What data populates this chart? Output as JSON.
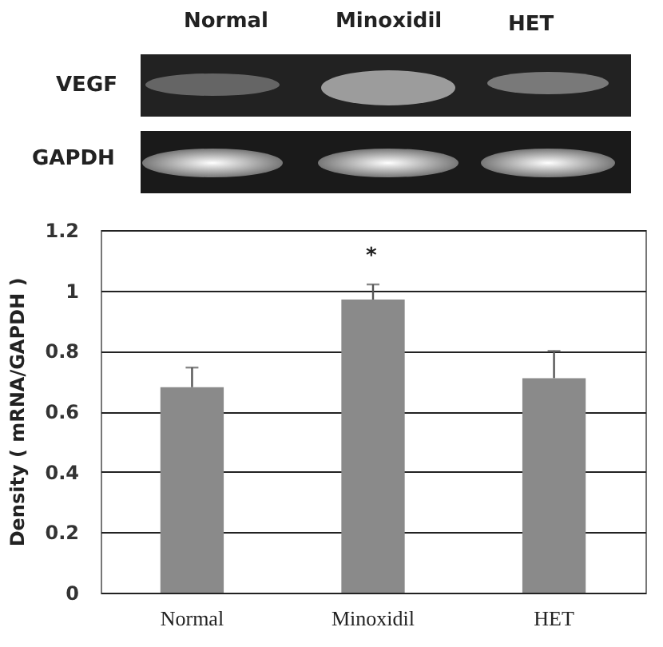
{
  "chart_data": {
    "type": "bar",
    "ylabel": "Density ( mRNA/GAPDH )",
    "categories": [
      "Normal",
      "Minoxidil",
      "HET"
    ],
    "values": [
      0.68,
      0.97,
      0.71
    ],
    "errors": [
      [
        0.68,
        0.745
      ],
      [
        0.97,
        1.02
      ],
      [
        0.71,
        0.8
      ]
    ],
    "color": "#8a8a8a",
    "ylim": [
      0,
      1.2
    ],
    "yticks": [
      0,
      0.2,
      0.4,
      0.6,
      0.8,
      1,
      1.2
    ],
    "grid": "y",
    "annotations": [
      "Normal",
      "Minoxidil",
      "HET",
      "VEGF",
      "GAPDH",
      "*"
    ]
  }
}
